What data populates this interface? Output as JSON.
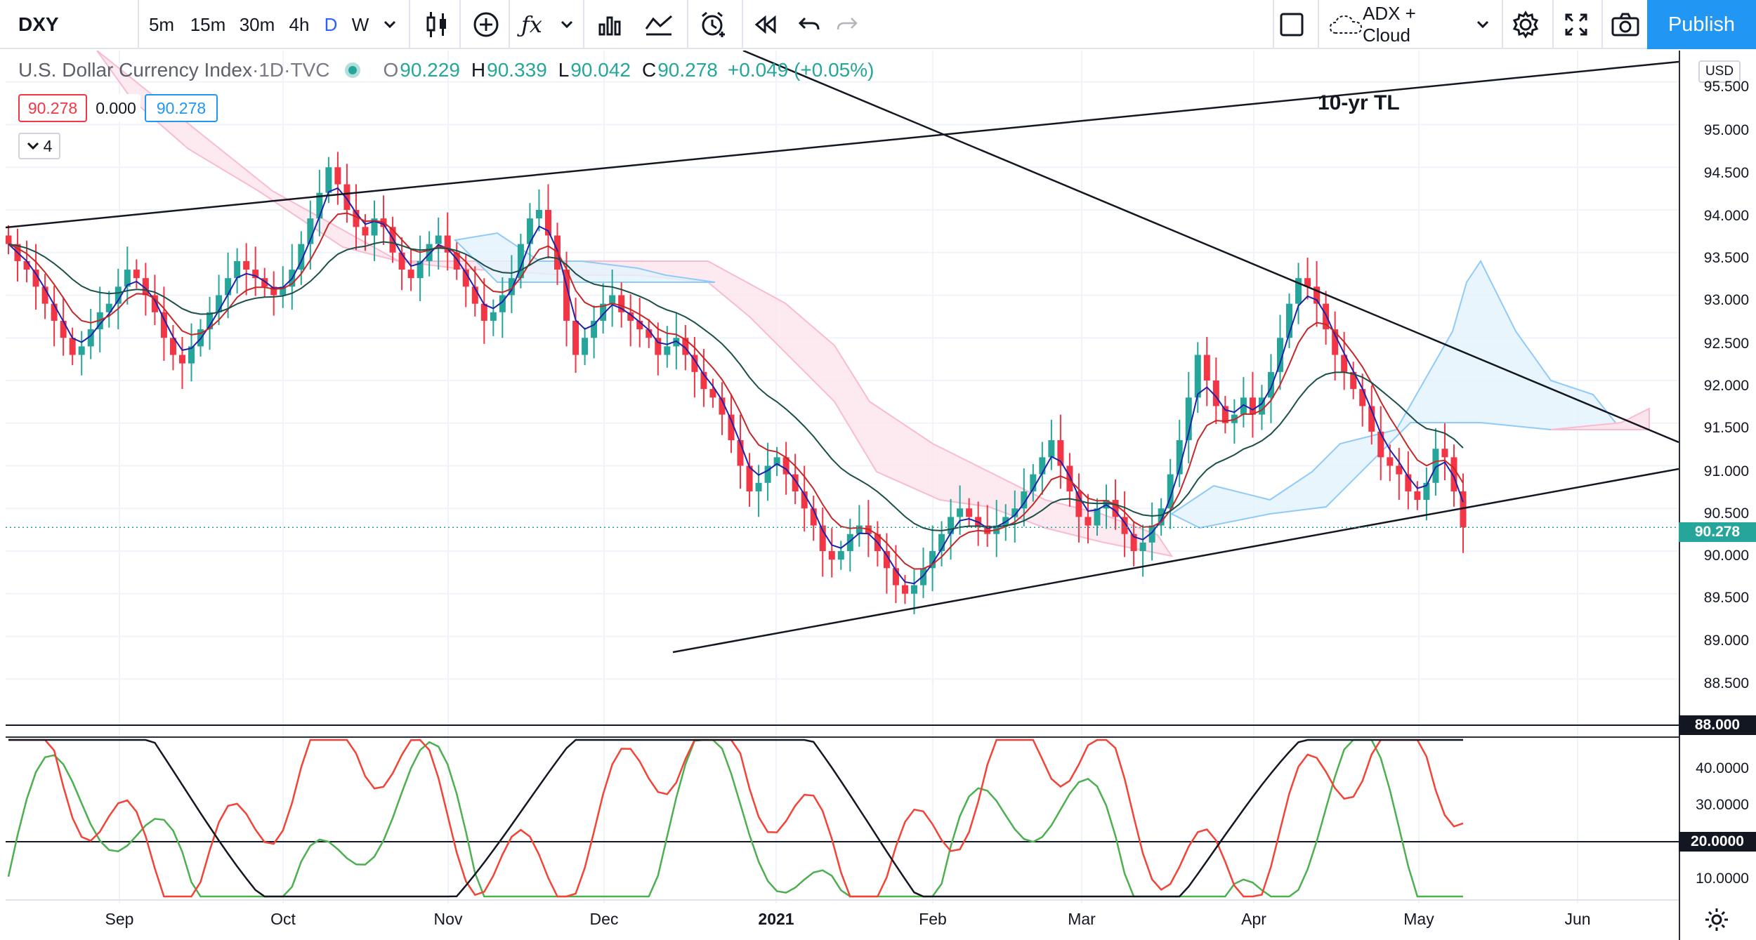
{
  "toolbar": {
    "symbol": "DXY",
    "timeframes": [
      "5m",
      "15m",
      "30m",
      "4h",
      "D",
      "W"
    ],
    "active_timeframe": "D",
    "indicator_template": "ADX + Cloud",
    "publish_label": "Publish",
    "icons": [
      "chevron-down-icon",
      "candles-icon",
      "compare-plus-icon",
      "indicators-fx-icon",
      "chevron-down-icon",
      "bar-chart-icon",
      "line-chart-icon",
      "alert-clock-icon",
      "replay-icon",
      "undo-icon",
      "redo-icon",
      "square-layout-icon",
      "cloud-icon",
      "gear-icon",
      "fullscreen-icon",
      "camera-icon"
    ]
  },
  "legend": {
    "name": "U.S. Dollar Currency Index",
    "sep1": " · ",
    "interval": "1D",
    "sep2": " · ",
    "source": "TVC",
    "open_label": "O",
    "open": "90.229",
    "high_label": "H",
    "high": "90.339",
    "low_label": "L",
    "low": "90.042",
    "close_label": "C",
    "close": "90.278",
    "change": "+0.049 (+0.05%)",
    "box_red": "90.278",
    "box_zero": "0.000",
    "box_blue": "90.278",
    "collapse_count": "4"
  },
  "annotations": {
    "trendline_label": "10-yr TL"
  },
  "price_axis": {
    "currency": "USD",
    "ticks": [
      "95.500",
      "95.000",
      "94.500",
      "94.000",
      "93.500",
      "93.000",
      "92.500",
      "92.000",
      "91.500",
      "91.000",
      "90.500",
      "90.000",
      "89.500",
      "89.000",
      "88.500"
    ],
    "last_price": "90.278",
    "level_88": "88.000"
  },
  "indicator_axis": {
    "ticks": [
      "40.0000",
      "30.0000",
      "10.0000"
    ],
    "level_20": "20.0000"
  },
  "time_axis": {
    "labels": [
      "Sep",
      "Oct",
      "Nov",
      "Dec",
      "2021",
      "Feb",
      "Mar",
      "Apr",
      "May",
      "Jun"
    ]
  },
  "colors": {
    "up": "#26a69a",
    "down": "#f23645",
    "cloud_bear": "#fce4ec",
    "cloud_bull": "#e3f2fd",
    "adx": "#131722",
    "di_plus": "#4caf50",
    "di_minus": "#f44336",
    "accent": "#2196f3"
  },
  "chart_data": {
    "type": "candlestick",
    "series_close": [
      93.6,
      93.4,
      93.3,
      93.1,
      92.9,
      92.7,
      92.5,
      92.3,
      92.4,
      92.6,
      92.8,
      92.9,
      93.1,
      93.3,
      93.2,
      93.0,
      92.8,
      92.5,
      92.3,
      92.2,
      92.4,
      92.6,
      92.8,
      93.0,
      93.2,
      93.4,
      93.3,
      93.2,
      93.1,
      93.0,
      93.1,
      93.3,
      93.6,
      93.9,
      94.2,
      94.5,
      94.3,
      94.0,
      93.8,
      93.7,
      93.9,
      93.8,
      93.5,
      93.3,
      93.2,
      93.4,
      93.6,
      93.7,
      93.5,
      93.3,
      93.1,
      92.9,
      92.7,
      92.8,
      93.0,
      93.2,
      93.6,
      93.9,
      94.0,
      93.7,
      93.3,
      92.7,
      92.3,
      92.5,
      92.7,
      92.9,
      93.0,
      92.8,
      92.7,
      92.6,
      92.5,
      92.3,
      92.4,
      92.5,
      92.3,
      92.1,
      91.9,
      91.8,
      91.6,
      91.3,
      91.0,
      90.7,
      90.8,
      91.0,
      91.1,
      90.9,
      90.7,
      90.5,
      90.3,
      90.0,
      89.9,
      90.0,
      90.2,
      90.3,
      90.2,
      90.0,
      89.8,
      89.6,
      89.5,
      89.6,
      89.8,
      90.0,
      90.2,
      90.4,
      90.5,
      90.4,
      90.3,
      90.2,
      90.3,
      90.4,
      90.5,
      90.7,
      90.9,
      91.1,
      91.3,
      91.0,
      90.7,
      90.4,
      90.3,
      90.5,
      90.6,
      90.4,
      90.2,
      90.0,
      90.1,
      90.3,
      90.5,
      90.9,
      91.3,
      91.8,
      92.3,
      92.0,
      91.7,
      91.5,
      91.6,
      91.8,
      91.6,
      91.8,
      92.1,
      92.5,
      92.9,
      93.2,
      93.1,
      92.9,
      92.6,
      92.3,
      92.1,
      91.9,
      91.7,
      91.4,
      91.1,
      91.0,
      90.9,
      90.7,
      90.6,
      90.8,
      91.2,
      91.1,
      90.7,
      90.278
    ],
    "price_range": [
      88.0,
      95.6
    ],
    "overlays": [
      "Ichimoku Cloud",
      "EMA fast",
      "EMA medium",
      "EMA slow"
    ],
    "indicator": "ADX / DI",
    "indicator_range": [
      5,
      45
    ]
  }
}
